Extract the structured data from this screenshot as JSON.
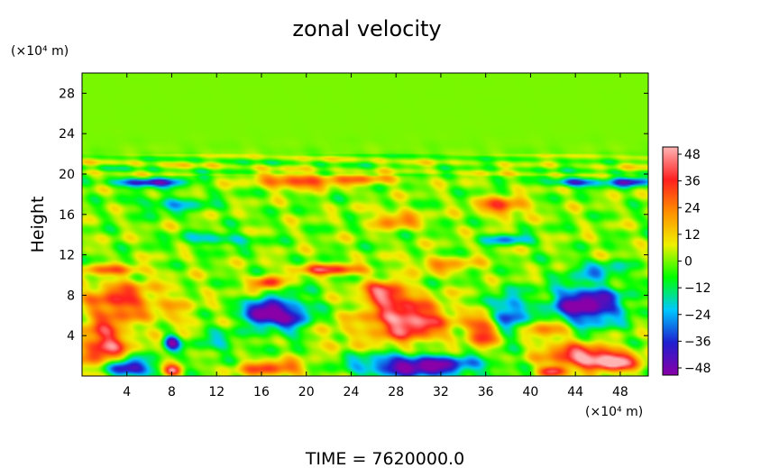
{
  "chart_data": {
    "type": "heatmap",
    "title": "zonal velocity",
    "ylabel": "Height",
    "xlabel": "",
    "y_unit": "(×10⁴ m)",
    "x_unit": "(×10⁴ m)",
    "footer": "TIME = 7620000.0",
    "xlim": [
      0,
      50.5
    ],
    "ylim": [
      0,
      30
    ],
    "x_ticks": [
      "4",
      "8",
      "12",
      "16",
      "20",
      "24",
      "28",
      "32",
      "36",
      "40",
      "44",
      "48"
    ],
    "y_ticks": [
      "4",
      "8",
      "12",
      "16",
      "20",
      "24",
      "28"
    ],
    "colorbar": {
      "ticks": [
        "48",
        "36",
        "24",
        "12",
        "0",
        "−12",
        "−24",
        "−36",
        "−48"
      ],
      "range": [
        -48,
        48
      ],
      "colormap": [
        "#8a00a8",
        "#1f1fd0",
        "#00c8ff",
        "#00ff00",
        "#f0f000",
        "#ff9000",
        "#ff2020",
        "#ffb4b4"
      ]
    },
    "background_value": 0,
    "features": [
      {
        "x": 2.0,
        "y": 3.0,
        "sx": 2.0,
        "sy": 2.5,
        "value": 40
      },
      {
        "x": 3.5,
        "y": 7.5,
        "sx": 2.8,
        "sy": 1.8,
        "value": 32
      },
      {
        "x": 4.0,
        "y": 0.8,
        "sx": 2.0,
        "sy": 0.9,
        "value": -52
      },
      {
        "x": 8.0,
        "y": 3.3,
        "sx": 0.7,
        "sy": 0.8,
        "value": -44
      },
      {
        "x": 8.5,
        "y": 6.0,
        "sx": 2.0,
        "sy": 2.5,
        "value": 10
      },
      {
        "x": 8.0,
        "y": 0.5,
        "sx": 0.8,
        "sy": 0.5,
        "value": 44
      },
      {
        "x": 16.0,
        "y": 6.3,
        "sx": 1.5,
        "sy": 1.0,
        "value": -52
      },
      {
        "x": 18.5,
        "y": 6.0,
        "sx": 2.0,
        "sy": 1.8,
        "value": -36
      },
      {
        "x": 16.5,
        "y": 9.2,
        "sx": 1.2,
        "sy": 0.6,
        "value": 36
      },
      {
        "x": 17.0,
        "y": 0.8,
        "sx": 3.0,
        "sy": 0.7,
        "value": 30
      },
      {
        "x": 29.0,
        "y": 5.5,
        "sx": 3.3,
        "sy": 1.9,
        "value": 48
      },
      {
        "x": 27.0,
        "y": 8.2,
        "sx": 1.8,
        "sy": 1.0,
        "value": 42
      },
      {
        "x": 30.0,
        "y": 1.0,
        "sx": 5.0,
        "sy": 1.0,
        "value": -52
      },
      {
        "x": 36.0,
        "y": 4.5,
        "sx": 1.5,
        "sy": 1.5,
        "value": 36
      },
      {
        "x": 38.0,
        "y": 6.0,
        "sx": 1.5,
        "sy": 2.0,
        "value": -36
      },
      {
        "x": 45.0,
        "y": 7.0,
        "sx": 3.0,
        "sy": 1.8,
        "value": -52
      },
      {
        "x": 44.5,
        "y": 2.0,
        "sx": 3.0,
        "sy": 1.0,
        "value": 44
      },
      {
        "x": 47.5,
        "y": 1.3,
        "sx": 2.2,
        "sy": 0.9,
        "value": 40
      },
      {
        "x": 42.0,
        "y": 0.5,
        "sx": 1.2,
        "sy": 0.5,
        "value": 40
      },
      {
        "x": 41.5,
        "y": 4.5,
        "sx": 2.0,
        "sy": 1.0,
        "value": 24
      },
      {
        "x": 6.0,
        "y": 19.2,
        "sx": 3.0,
        "sy": 0.4,
        "value": -44
      },
      {
        "x": 19.0,
        "y": 19.3,
        "sx": 3.0,
        "sy": 0.6,
        "value": 36
      },
      {
        "x": 25.0,
        "y": 19.4,
        "sx": 3.0,
        "sy": 0.5,
        "value": 20
      },
      {
        "x": 44.0,
        "y": 19.2,
        "sx": 2.0,
        "sy": 0.4,
        "value": -36
      },
      {
        "x": 49.0,
        "y": 19.2,
        "sx": 2.0,
        "sy": 0.4,
        "value": -40
      },
      {
        "x": 37.5,
        "y": 16.8,
        "sx": 2.0,
        "sy": 0.8,
        "value": 32
      },
      {
        "x": 28.0,
        "y": 15.5,
        "sx": 2.0,
        "sy": 0.8,
        "value": 24
      },
      {
        "x": 22.0,
        "y": 10.5,
        "sx": 3.0,
        "sy": 0.5,
        "value": 34
      },
      {
        "x": 2.5,
        "y": 10.5,
        "sx": 3.0,
        "sy": 0.5,
        "value": 20
      },
      {
        "x": 12.0,
        "y": 13.5,
        "sx": 3.0,
        "sy": 0.6,
        "value": -20
      },
      {
        "x": 38.0,
        "y": 13.5,
        "sx": 2.0,
        "sy": 0.5,
        "value": -24
      },
      {
        "x": 46.0,
        "y": 10.5,
        "sx": 2.5,
        "sy": 0.8,
        "value": -20
      },
      {
        "x": 8.0,
        "y": 17.0,
        "sx": 3.0,
        "sy": 0.8,
        "value": -18
      },
      {
        "x": 32.0,
        "y": 11.0,
        "sx": 3.0,
        "sy": 0.7,
        "value": 18
      },
      {
        "x": 12.0,
        "y": 3.5,
        "sx": 2.5,
        "sy": 1.5,
        "value": -12
      },
      {
        "x": 22.0,
        "y": 4.0,
        "sx": 2.5,
        "sy": 1.5,
        "value": 8
      }
    ]
  }
}
